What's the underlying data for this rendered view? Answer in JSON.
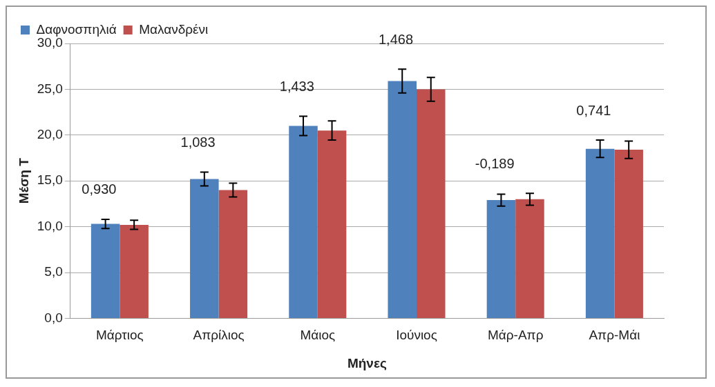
{
  "chart_data": {
    "type": "bar",
    "xlabel": "Μήνες",
    "ylabel": "Μέση T",
    "categories": [
      "Μάρτιος",
      "Απρίλιος",
      "Μάιος",
      "Ιούνιος",
      "Μάρ-Απρ",
      "Απρ-Μάι"
    ],
    "series": [
      {
        "name": "Δαφνοσπηλιά",
        "color": "#4f81bd",
        "values": [
          10.3,
          15.2,
          21.0,
          25.9,
          12.9,
          18.5
        ],
        "errors": [
          0.5,
          0.75,
          1.05,
          1.3,
          0.65,
          0.95
        ]
      },
      {
        "name": "Μαλανδρένι",
        "color": "#c0504d",
        "values": [
          10.2,
          14.0,
          20.5,
          25.0,
          13.0,
          18.4
        ],
        "errors": [
          0.5,
          0.75,
          1.05,
          1.3,
          0.65,
          0.95
        ]
      }
    ],
    "ylim": [
      0,
      30
    ],
    "yticks": [
      {
        "value": 0,
        "label": "0,0"
      },
      {
        "value": 5,
        "label": "5,0"
      },
      {
        "value": 10,
        "label": "10,0"
      },
      {
        "value": 15,
        "label": "15,0"
      },
      {
        "value": 20,
        "label": "20,0"
      },
      {
        "value": 25,
        "label": "25,0"
      },
      {
        "value": 30,
        "label": "30,0"
      }
    ],
    "grid": "y",
    "legend": "top left",
    "annotations": [
      "0,930",
      "1,083",
      "1,433",
      "1,468",
      "-0,189",
      "0,741"
    ]
  }
}
